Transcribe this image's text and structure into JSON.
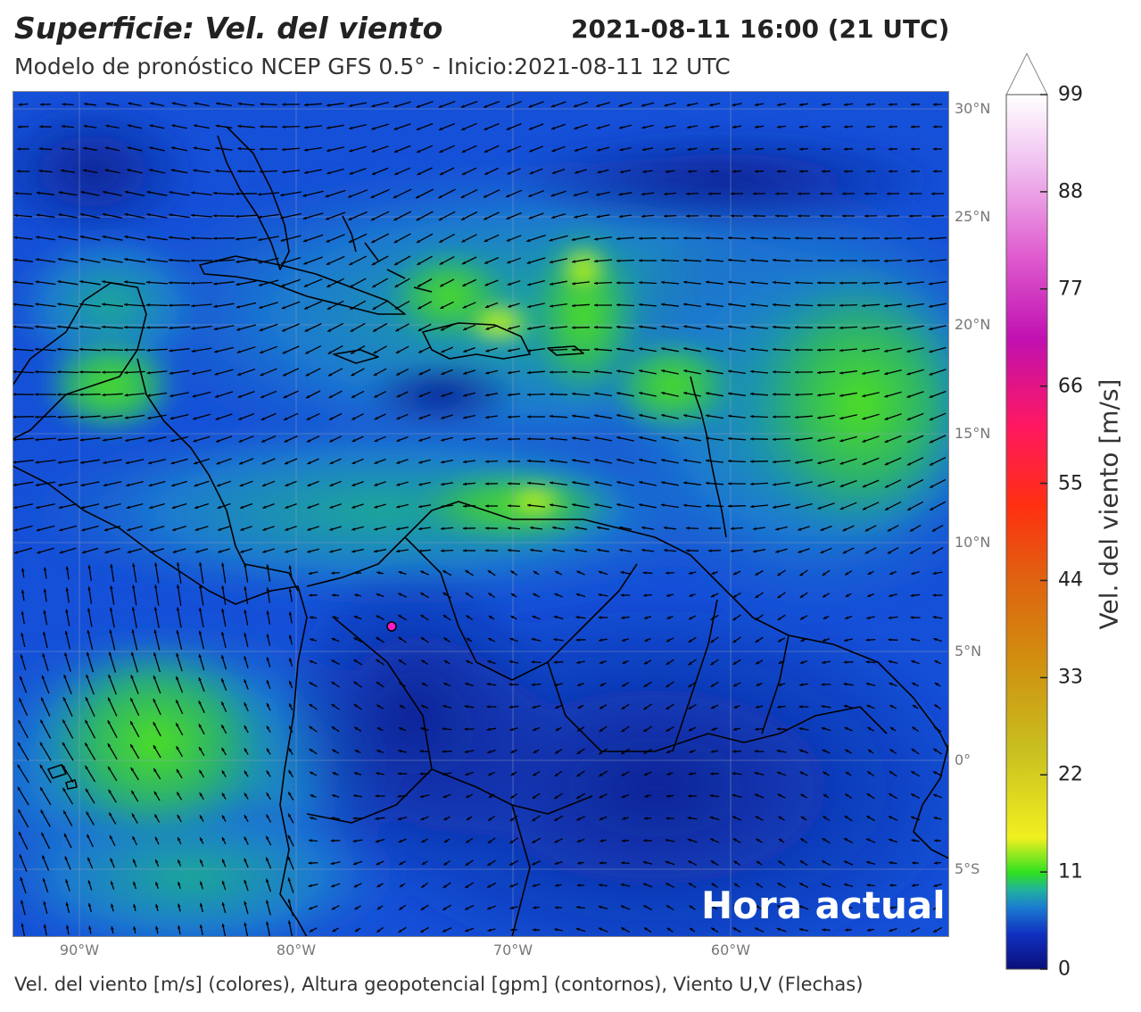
{
  "header": {
    "title": "Superficie: Vel. del viento",
    "datetime": "2021-08-11 16:00 (21 UTC)",
    "subtitle": "Modelo de pronóstico NCEP GFS 0.5° - Inicio:2021-08-11 12 UTC"
  },
  "map": {
    "lat_labels": [
      "30°N",
      "25°N",
      "20°N",
      "15°N",
      "10°N",
      "5°N",
      "0°",
      "5°S"
    ],
    "lon_labels": [
      "90°W",
      "80°W",
      "70°W",
      "60°W"
    ],
    "marker_color": "#ff19c8",
    "overlay_label": "Hora actual",
    "ocean_color": "#1a3ec0",
    "land_color": "#0f2aa8"
  },
  "colorbar": {
    "title": "Vel. del viento [m/s]",
    "ticks": [
      "0",
      "11",
      "22",
      "33",
      "44",
      "55",
      "66",
      "77",
      "88",
      "99"
    ],
    "min": 0,
    "max": 99
  },
  "footer": {
    "caption": "Vel. del viento [m/s] (colores), Altura geopotencial [gpm] (contornos), Viento U,V (Flechas)"
  }
}
